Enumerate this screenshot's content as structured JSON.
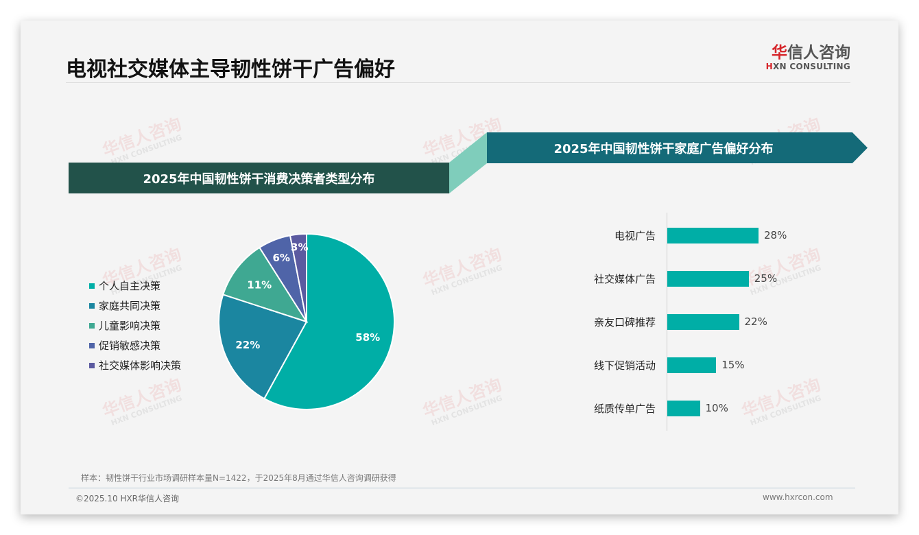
{
  "header": {
    "title": "电视社交媒体主导韧性饼干广告偏好",
    "logo_cn_first": "华",
    "logo_cn_rest": "信人咨询",
    "logo_en_first": "H",
    "logo_en_rest": "XN CONSULTING"
  },
  "watermark": {
    "cn": "华信人咨询",
    "en": "HXN CONSULTING"
  },
  "left_panel": {
    "banner": "2025年中国韧性饼干消费决策者类型分布"
  },
  "right_panel": {
    "banner": "2025年中国韧性饼干家庭广告偏好分布"
  },
  "colors": {
    "banner_left": "#22524a",
    "banner_right": "#146a78",
    "connector": "#7fcdbb",
    "bar": "#00aea6",
    "brand_red": "#d6262b"
  },
  "chart_data": [
    {
      "type": "pie",
      "title": "2025年中国韧性饼干消费决策者类型分布",
      "categories": [
        "个人自主决策",
        "家庭共同决策",
        "儿童影响决策",
        "促销敏感决策",
        "社交媒体影响决策"
      ],
      "values": [
        58,
        22,
        11,
        6,
        3
      ],
      "labels": [
        "58%",
        "22%",
        "11%",
        "6%",
        "3%"
      ],
      "colors": [
        "#00aea6",
        "#1b86a0",
        "#3fa892",
        "#4f64a8",
        "#5b5aa0"
      ],
      "legend_position": "left",
      "start_angle": "12 o'clock, clockwise"
    },
    {
      "type": "bar",
      "orientation": "horizontal",
      "title": "2025年中国韧性饼干家庭广告偏好分布",
      "categories": [
        "电视广告",
        "社交媒体广告",
        "亲友口碑推荐",
        "线下促销活动",
        "纸质传单广告"
      ],
      "values": [
        28,
        25,
        22,
        15,
        10
      ],
      "labels": [
        "28%",
        "25%",
        "22%",
        "15%",
        "10%"
      ],
      "xlabel": "",
      "ylabel": "",
      "grid": false,
      "unit": "%"
    }
  ],
  "footer": {
    "note": "样本：韧性饼干行业市场调研样本量N=1422，于2025年8月通过华信人咨询调研获得",
    "copyright": "©2025.10 HXR华信人咨询",
    "site": "www.hxrcon.com"
  }
}
